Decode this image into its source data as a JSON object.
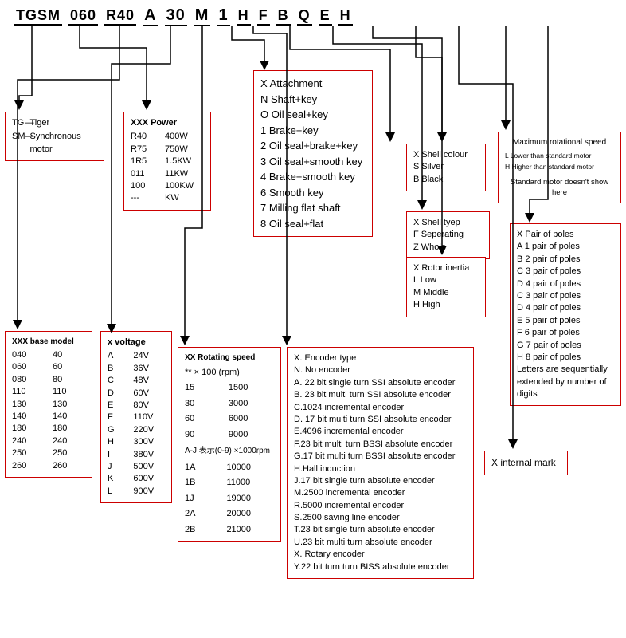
{
  "code_segments": [
    {
      "text": "TGSM",
      "cls": "md"
    },
    {
      "text": "060",
      "cls": "md"
    },
    {
      "text": "R40",
      "cls": "md"
    },
    {
      "text": "A",
      "cls": "lg"
    },
    {
      "text": "30",
      "cls": "lg"
    },
    {
      "text": "M",
      "cls": "lg"
    },
    {
      "text": "1",
      "cls": "lg"
    },
    {
      "text": "H",
      "cls": "md"
    },
    {
      "text": "F",
      "cls": "md"
    },
    {
      "text": "B",
      "cls": "md"
    },
    {
      "text": "Q",
      "cls": "md"
    },
    {
      "text": "E",
      "cls": "md"
    },
    {
      "text": "H",
      "cls": "md"
    }
  ],
  "brand": {
    "tg_label": "TG",
    "tg_val": "Tiger",
    "sm_label": "SM",
    "sm_val": "Synchronous motor"
  },
  "power": {
    "hdr": "XXX Power",
    "rows": [
      [
        "R40",
        "400W"
      ],
      [
        "R75",
        "750W"
      ],
      [
        "1R5",
        "1.5KW"
      ],
      [
        "011",
        "11KW"
      ],
      [
        "100",
        "100KW"
      ],
      [
        "---",
        "KW"
      ]
    ]
  },
  "attachment": {
    "rows": [
      "X Attachment",
      "N Shaft+key",
      "O Oil seal+key",
      "1 Brake+key",
      "2 Oil seal+brake+key",
      "3 Oil seal+smooth key",
      "4 Brake+smooth key",
      "6 Smooth key",
      "7 Milling flat shaft",
      "8 Oil seal+flat"
    ]
  },
  "shell_colour": {
    "rows": [
      "X Shell colour",
      "S Silver",
      "B Black"
    ]
  },
  "max_speed": {
    "title": "Maximum rotational speed",
    "l": "L  Lower than standard motor",
    "h": "H  Higher than standard motor",
    "note": "Standard motor doesn't show here"
  },
  "shell_type": {
    "rows": [
      "X Shell tyep",
      "F  Seperating",
      "Z  Whole"
    ]
  },
  "rotor": {
    "rows": [
      "X Rotor inertia",
      "L Low",
      "M Middle",
      "H High"
    ]
  },
  "poles": {
    "rows": [
      "X Pair of poles",
      "A 1 pair of poles",
      "B 2 pair of poles",
      "C 3 pair of poles",
      "D 4 pair of poles",
      "C 3 pair of poles",
      "D 4 pair of poles",
      "E 5 pair of poles",
      "F 6 pair of poles",
      "G 7 pair of poles",
      "H 8 pair of poles",
      "Letters are sequentially extended by number of digits"
    ]
  },
  "internal": {
    "text": "X internal mark"
  },
  "base_model": {
    "hdr": "XXX  base model",
    "rows": [
      [
        "040",
        "40"
      ],
      [
        "060",
        "60"
      ],
      [
        "080",
        "80"
      ],
      [
        "110",
        "110"
      ],
      [
        "130",
        "130"
      ],
      [
        "140",
        "140"
      ],
      [
        "180",
        "180"
      ],
      [
        "240",
        "240"
      ],
      [
        "250",
        "250"
      ],
      [
        "260",
        "260"
      ]
    ]
  },
  "voltage": {
    "hdr": "x  voltage",
    "rows": [
      [
        "A",
        "24V"
      ],
      [
        "B",
        "36V"
      ],
      [
        "C",
        "48V"
      ],
      [
        "D",
        "60V"
      ],
      [
        "E",
        "80V"
      ],
      [
        "F",
        "110V"
      ],
      [
        "G",
        "220V"
      ],
      [
        "H",
        "300V"
      ],
      [
        "I",
        "380V"
      ],
      [
        "J",
        "500V"
      ],
      [
        "K",
        "600V"
      ],
      [
        "L",
        "900V"
      ]
    ]
  },
  "rpm": {
    "hdr": "XX Rotating speed",
    "sub": "** × 100 (rpm)",
    "rows1": [
      [
        "15",
        "1500"
      ],
      [
        "30",
        "3000"
      ],
      [
        "60",
        "6000"
      ],
      [
        "90",
        "9000"
      ]
    ],
    "note": "A-J 表示(0-9) ×1000rpm",
    "rows2": [
      [
        "1A",
        "10000"
      ],
      [
        "1B",
        "11000"
      ],
      [
        "1J",
        "19000"
      ],
      [
        "2A",
        "20000"
      ],
      [
        "2B",
        "21000"
      ]
    ]
  },
  "encoder": {
    "rows": [
      "X. Encoder type",
      "N. No encoder",
      "A. 22 bit single turn SSI absolute encoder",
      "B. 23 bit multi turn SSI absolute encoder",
      "C.1024 incremental encoder",
      "D. 17 bit multi turn SSI absolute encoder",
      "E.4096 incremental encoder",
      "F.23 bit multi turn BSSI absolute encoder",
      "G.17 bit multi turn BSSI absolute encoder",
      "H.Hall induction",
      "J.17 bit single turn absolute encoder",
      "M.2500 incremental encoder",
      "R.5000 incremental encoder",
      "S.2500 saving line encoder",
      "T.23 bit single turn absolute encoder",
      "U.23 bit multi turn absolute encoder",
      "X. Rotary encoder",
      "Y.22 bit turn turn BISS absolute encoder"
    ]
  },
  "connectors": {
    "stroke": "#000",
    "stroke_width": 1.5,
    "arrow_size": 8,
    "paths": [
      "M40 32 L40 120 L24 120 L24 135",
      "M100 32 L100 60 L184 60 L184 135",
      "M150 32 L150 100 L22 100 L22 410",
      "M214 32 L214 80 L140 80 L140 415",
      "M254 32 L254 286 L232 286 L232 430",
      "M291 32 L291 50 L332 50 L332 85",
      "M318 32 L318 42 L360 42 L360 430",
      "M364 32 L364 62 L490 62 L490 175",
      "M418 32 L418 55 L530 55 L530 260",
      "M468 32 L468 48 L555 48 L555 175",
      "M522 32 L522 72 L555 72 L555 317",
      "M576 32 L576 105 L644 105 L644 560",
      "M635 32 L635 160",
      "M688 32 L688 250 L665 250 L665 276"
    ]
  }
}
